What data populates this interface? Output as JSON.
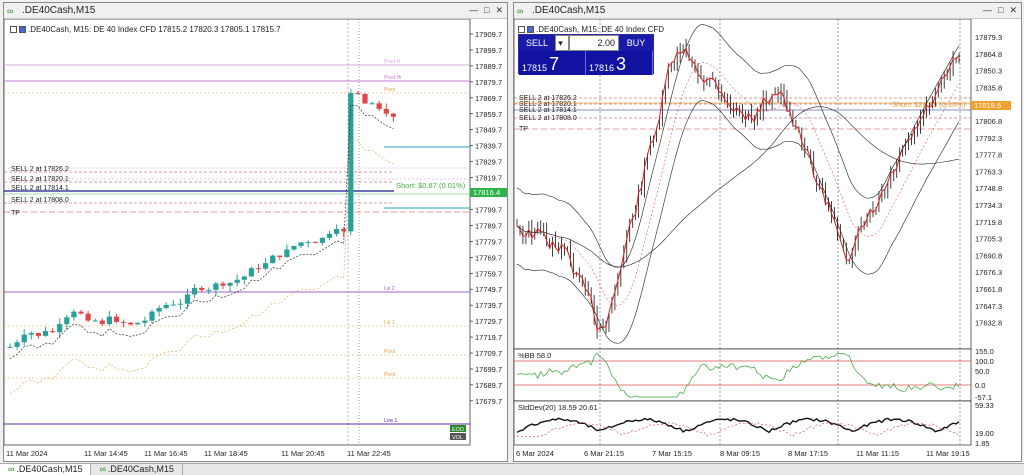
{
  "left_window": {
    "title": ".DE40Cash,M15",
    "info": ".DE40Cash, M15:  DE 40 Index CFD  17815.2 17820.3 17805.1 17815.7",
    "price_scale": [
      "17909.7",
      "17899.7",
      "17889.7",
      "17879.7",
      "17869.7",
      "17859.7",
      "17849.7",
      "17839.7",
      "17829.7",
      "17819.7",
      "17809.7",
      "17799.7",
      "17789.7",
      "17779.7",
      "17769.7",
      "17759.7",
      "17749.7",
      "17739.7",
      "17729.7",
      "17719.7",
      "17709.7",
      "17699.7",
      "17689.7",
      "17679.7"
    ],
    "time_scale": [
      "11 Mar 2024",
      "11 Mar 14:45",
      "11 Mar 16:45",
      "11 Mar 18:45",
      "11 Mar 20:45",
      "11 Mar 22:45"
    ],
    "orders": [
      "SELL 2 at 17826.2",
      "SELL 2 at 17820.1",
      "SELL 2 at 17814.1",
      "SELL 2 at 17808.0"
    ],
    "tp_label": "TP",
    "short_label": "Short:  $0.87 (0.01%)",
    "current_price": "17816.4",
    "pivot_labels": [
      "Pivot H",
      "Pivot Hi",
      "Pivot",
      "Lvl 2",
      "Lvl 1",
      "Pivot",
      "Pivot",
      "Low 1"
    ],
    "stamp_top": "EOD",
    "stamp_bottom": "VOL"
  },
  "right_window": {
    "title": ".DE40Cash,M15",
    "info": ".DE40Cash, M15:  DE 40 Index CFD",
    "trade_panel": {
      "sell_label": "SELL",
      "lot": "2.00",
      "buy_label": "BUY",
      "sell_price_prefix": "17815",
      "sell_price_big": "7",
      "buy_price_prefix": "17816",
      "buy_price_big": "3"
    },
    "orders": [
      "SELL 2 at 17826.2",
      "SELL 2 at 17820.1",
      "SELL 2 at 17814.1",
      "SELL 2 at 17808.0"
    ],
    "tp_label": "TP",
    "short_label": "Short:  $28.93 (0.16%)",
    "current_price": "17819.6",
    "price_scale": [
      "17879.3",
      "17864.8",
      "17850.3",
      "17835.8",
      "17821.3",
      "17806.8",
      "17792.3",
      "17777.8",
      "17763.3",
      "17748.8",
      "17734.3",
      "17719.8",
      "17705.3",
      "17690.8",
      "17676.3",
      "17661.8",
      "17647.3",
      "17632.8"
    ],
    "bb_label": "%BB 58.0",
    "bb_scale": [
      "155.0",
      "100.0",
      "50.0",
      "0.0",
      "-57.1"
    ],
    "sd_label": "StdDev(20) 18.59 20.61",
    "sd_scale": [
      "59.33",
      "19.00",
      "1.85"
    ],
    "time_scale": [
      "6 Mar 2024",
      "6 Mar 21:15",
      "7 Mar 15:15",
      "8 Mar 09:15",
      "8 Mar 17:15",
      "11 Mar 11:15",
      "11 Mar 19:15"
    ]
  },
  "tabs": [
    ".DE40Cash,M15",
    ".DE40Cash,M15"
  ]
}
